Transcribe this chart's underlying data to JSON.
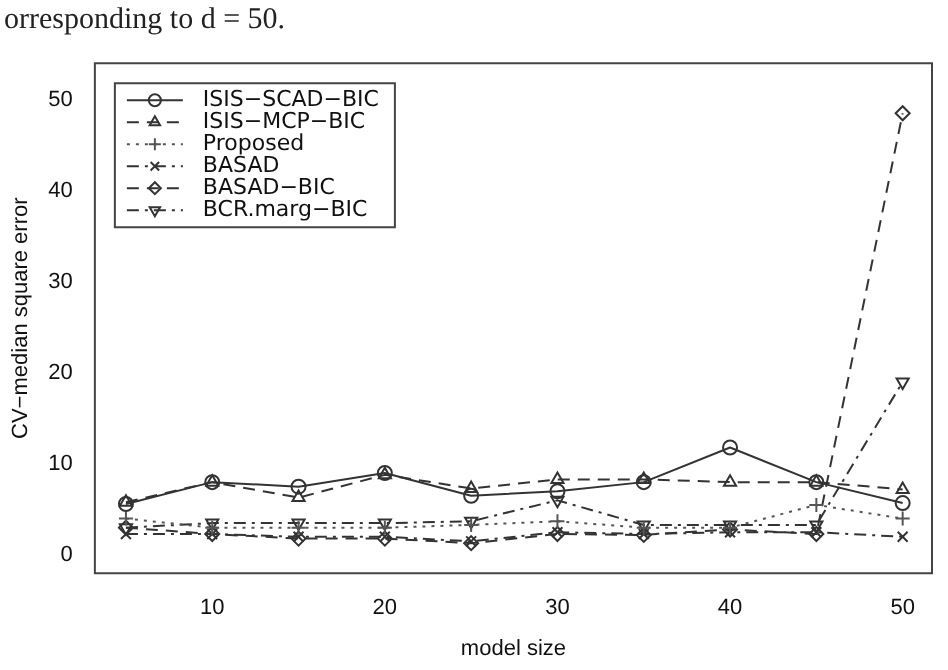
{
  "chart_data": {
    "type": "line",
    "xlabel": "model size",
    "ylabel": "CV−median square error",
    "annotations": [
      "orresponding to d = 50."
    ],
    "x": [
      5,
      10,
      15,
      20,
      25,
      30,
      35,
      40,
      45,
      50
    ],
    "xlim": [
      3.2,
      51.7
    ],
    "xticks": [
      10,
      20,
      30,
      40,
      50
    ],
    "ylim": [
      -2,
      54
    ],
    "yticks": [
      0,
      10,
      20,
      30,
      40,
      50
    ],
    "grid": false,
    "legend": "top left",
    "series": [
      {
        "name": "ISIS−SCAD−BIC",
        "color": "#333333",
        "marker": "circle",
        "line_style": "solid",
        "values": [
          5.6,
          8,
          7.5,
          9,
          6.5,
          7,
          8,
          11.8,
          8,
          5.7
        ]
      },
      {
        "name": "ISIS−MCP−BIC",
        "color": "#333333",
        "marker": "triangle",
        "line_style": "dashed",
        "values": [
          5.8,
          8,
          6.3,
          8.8,
          7.3,
          8.3,
          8.3,
          8,
          8,
          7.2
        ]
      },
      {
        "name": "Proposed",
        "color": "#555555",
        "marker": "cross",
        "line_style": "dotted",
        "values": [
          4,
          3,
          3,
          3,
          3.3,
          3.7,
          3,
          3,
          5.5,
          4
        ]
      },
      {
        "name": "BASAD",
        "color": "#333333",
        "marker": "x",
        "line_style": "dashdot",
        "values": [
          2.3,
          2.3,
          2,
          2,
          1.5,
          2.5,
          2.3,
          2.5,
          2.5,
          2
        ]
      },
      {
        "name": "BASAD−BIC",
        "color": "#333333",
        "marker": "diamond",
        "line_style": "dashed",
        "values": [
          3,
          2.3,
          1.8,
          1.8,
          1.3,
          2.3,
          2.2,
          2.8,
          2.3,
          48.5
        ]
      },
      {
        "name": "BCR.marg−BIC",
        "color": "#333333",
        "marker": "triangle-down",
        "line_style": "dashdot",
        "values": [
          3,
          3.5,
          3.5,
          3.5,
          3.7,
          6,
          3.3,
          3.3,
          3.3,
          19
        ]
      }
    ]
  }
}
